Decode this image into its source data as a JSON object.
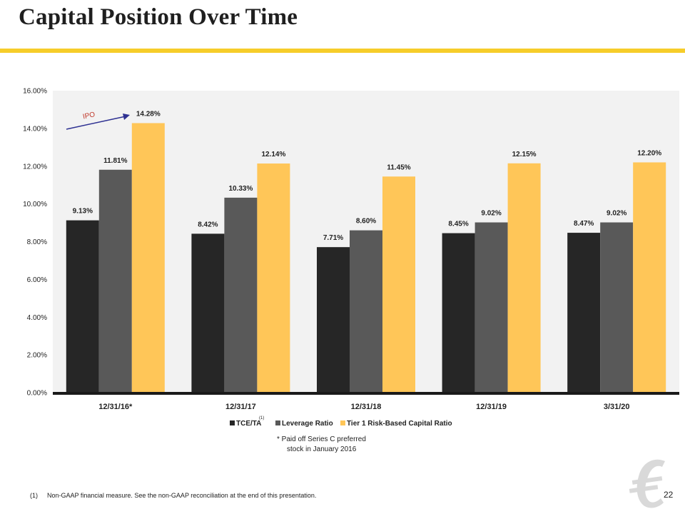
{
  "page": {
    "title": "Capital Position Over Time",
    "page_number": "22",
    "footnote_marker": "(1)",
    "footnote_text": "Non-GAAP financial measure. See the non-GAAP reconciliation at the end of this presentation."
  },
  "colors": {
    "accent_rule": "#f6cd2a",
    "plot_background": "#f2f2f2",
    "annotation_arrow": "#2e3192",
    "annotation_text": "#c0392b"
  },
  "chart_data": {
    "type": "bar",
    "categories": [
      "12/31/16*",
      "12/31/17",
      "12/31/18",
      "12/31/19",
      "3/31/20"
    ],
    "series": [
      {
        "name": "TCE/TA",
        "superscript": "(1)",
        "color": "#262626",
        "values": [
          9.13,
          8.42,
          7.71,
          8.45,
          8.47
        ],
        "labels": [
          "9.13%",
          "8.42%",
          "7.71%",
          "8.45%",
          "8.47%"
        ]
      },
      {
        "name": "Leverage Ratio",
        "color": "#595959",
        "values": [
          11.81,
          10.33,
          8.6,
          9.02,
          9.02
        ],
        "labels": [
          "11.81%",
          "10.33%",
          "8.60%",
          "9.02%",
          "9.02%"
        ]
      },
      {
        "name": "Tier 1 Risk-Based Capital Ratio",
        "color": "#ffc658",
        "values": [
          14.28,
          12.14,
          11.45,
          12.15,
          12.2
        ],
        "labels": [
          "14.28%",
          "12.14%",
          "11.45%",
          "12.15%",
          "12.20%"
        ]
      }
    ],
    "ylim": [
      0,
      16
    ],
    "yticks": [
      "0.00%",
      "2.00%",
      "4.00%",
      "6.00%",
      "8.00%",
      "10.00%",
      "12.00%",
      "14.00%",
      "16.00%"
    ],
    "grid": false,
    "legend_position": "bottom",
    "annotations": {
      "ipo_label": "IPO",
      "asterisk_note_line1": "* Paid off Series C preferred",
      "asterisk_note_line2": "stock in January 2016"
    }
  }
}
